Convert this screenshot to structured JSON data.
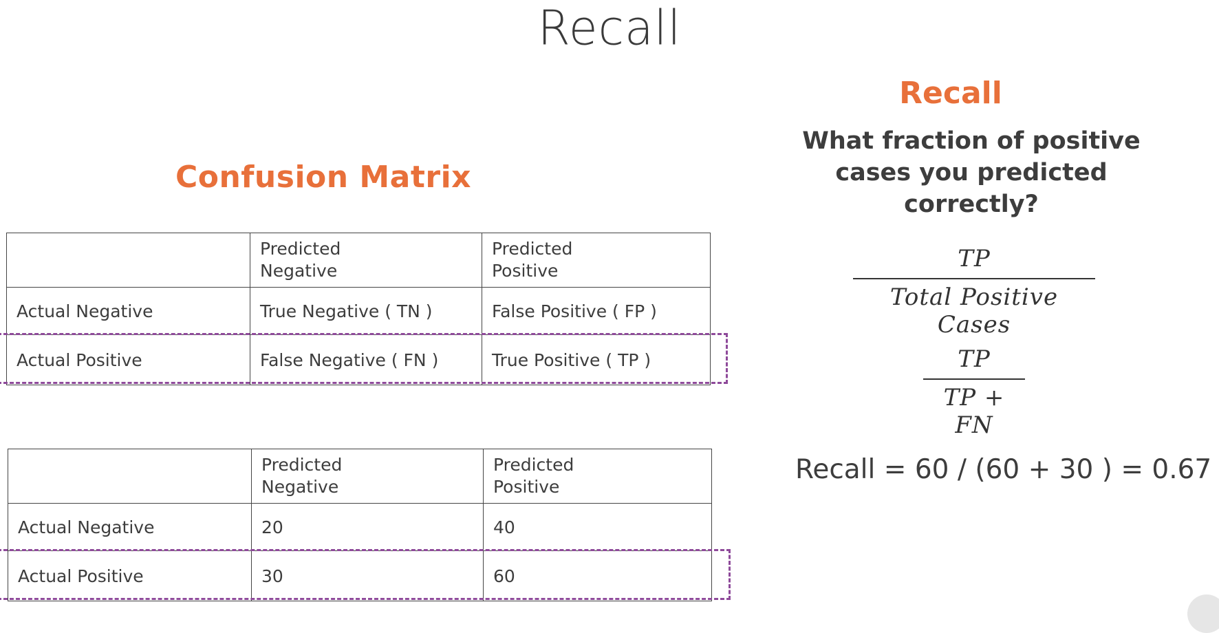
{
  "slide": {
    "title": "Recall"
  },
  "confusion_matrix": {
    "heading": "Confusion Matrix",
    "columns": [
      "",
      "Predicted\nNegative",
      "Predicted\nPositive"
    ],
    "labeled": {
      "rows": [
        [
          "Actual Negative",
          "True Negative ( TN )",
          "False Positive ( FP )"
        ],
        [
          "Actual Positive",
          "False Negative ( FN )",
          "True Positive ( TP )"
        ]
      ]
    },
    "values": {
      "rows": [
        [
          "Actual Negative",
          "20",
          "40"
        ],
        [
          "Actual Positive",
          "30",
          "60"
        ]
      ]
    },
    "highlight_color": "#8e4a9a"
  },
  "recall_panel": {
    "heading": "Recall",
    "question": "What fraction of positive cases you predicted correctly?",
    "formula_1": {
      "numerator": "TP",
      "denominator": "Total Positive Cases"
    },
    "formula_2": {
      "numerator": "TP",
      "denominator": "TP + FN"
    },
    "result": "Recall = 60 / (60 + 30 ) = 0.67"
  },
  "colors": {
    "accent": "#e8703a",
    "text": "#3d3d3d"
  }
}
